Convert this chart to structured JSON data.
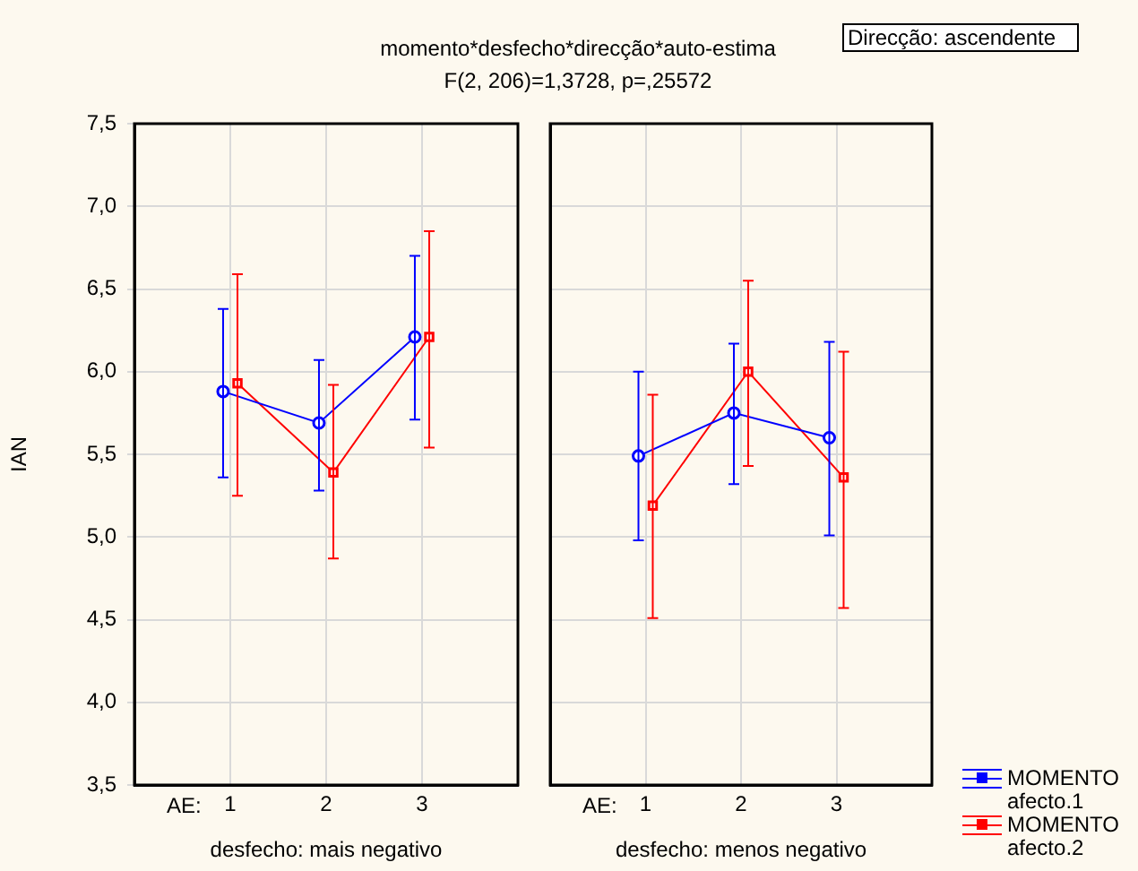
{
  "chart_data": [
    {
      "type": "line",
      "title": "momento*desfecho*direcção*auto-estima",
      "subtitle": "F(2, 206)=1,3728, p=,25572",
      "xlabel": "desfecho: mais negativo",
      "ylabel": "IAN",
      "annotations": [
        "AE:",
        "Direcção: ascendente"
      ],
      "categories": [
        "1",
        "2",
        "3"
      ],
      "ylim": [
        3.5,
        7.5
      ],
      "yticks": [
        {
          "value": 3.5,
          "label": "3,5"
        },
        {
          "value": 4,
          "label": "4,0"
        },
        {
          "value": 4.5,
          "label": "4,5"
        },
        {
          "value": 5,
          "label": "5,0"
        },
        {
          "value": 5.5,
          "label": "5,5"
        },
        {
          "value": 6,
          "label": "6,0"
        },
        {
          "value": 6.5,
          "label": "6,5"
        },
        {
          "value": 7,
          "label": "7,0"
        },
        {
          "value": 7.5,
          "label": "7,5"
        }
      ],
      "grid": true,
      "legend": false,
      "series": [
        {
          "color": "#0000ff",
          "marker": "circle",
          "values": [
            5.88,
            5.69,
            6.21
          ],
          "errors": [
            [
              5.36,
              6.38
            ],
            [
              5.28,
              6.07
            ],
            [
              5.71,
              6.7
            ]
          ]
        },
        {
          "color": "#ff0000",
          "marker": "square",
          "values": [
            5.93,
            5.39,
            6.21
          ],
          "errors": [
            [
              5.25,
              6.59
            ],
            [
              4.87,
              5.92
            ],
            [
              5.54,
              6.85
            ]
          ]
        }
      ]
    },
    {
      "type": "line",
      "xlabel": "desfecho: menos negativo",
      "annotations": [
        "AE:"
      ],
      "categories": [
        "1",
        "2",
        "3"
      ],
      "ylim": [
        3.5,
        7.5
      ],
      "yticks": [
        3.5,
        4,
        4.5,
        5,
        5.5,
        6,
        6.5,
        7,
        7.5
      ],
      "tick_labels": "x",
      "grid": true,
      "legend": "bottom right",
      "series": [
        {
          "name": "MOMENTO afecto.1",
          "color": "#0000ff",
          "marker": "circle",
          "values": [
            5.49,
            5.75,
            5.6
          ],
          "errors": [
            [
              4.98,
              6.0
            ],
            [
              5.32,
              6.17
            ],
            [
              5.01,
              6.18
            ]
          ]
        },
        {
          "name": "MOMENTO afecto.2",
          "color": "#ff0000",
          "marker": "square",
          "values": [
            5.19,
            6.0,
            5.36
          ],
          "errors": [
            [
              4.51,
              5.86
            ],
            [
              5.43,
              6.55
            ],
            [
              4.57,
              6.12
            ]
          ]
        }
      ]
    }
  ]
}
